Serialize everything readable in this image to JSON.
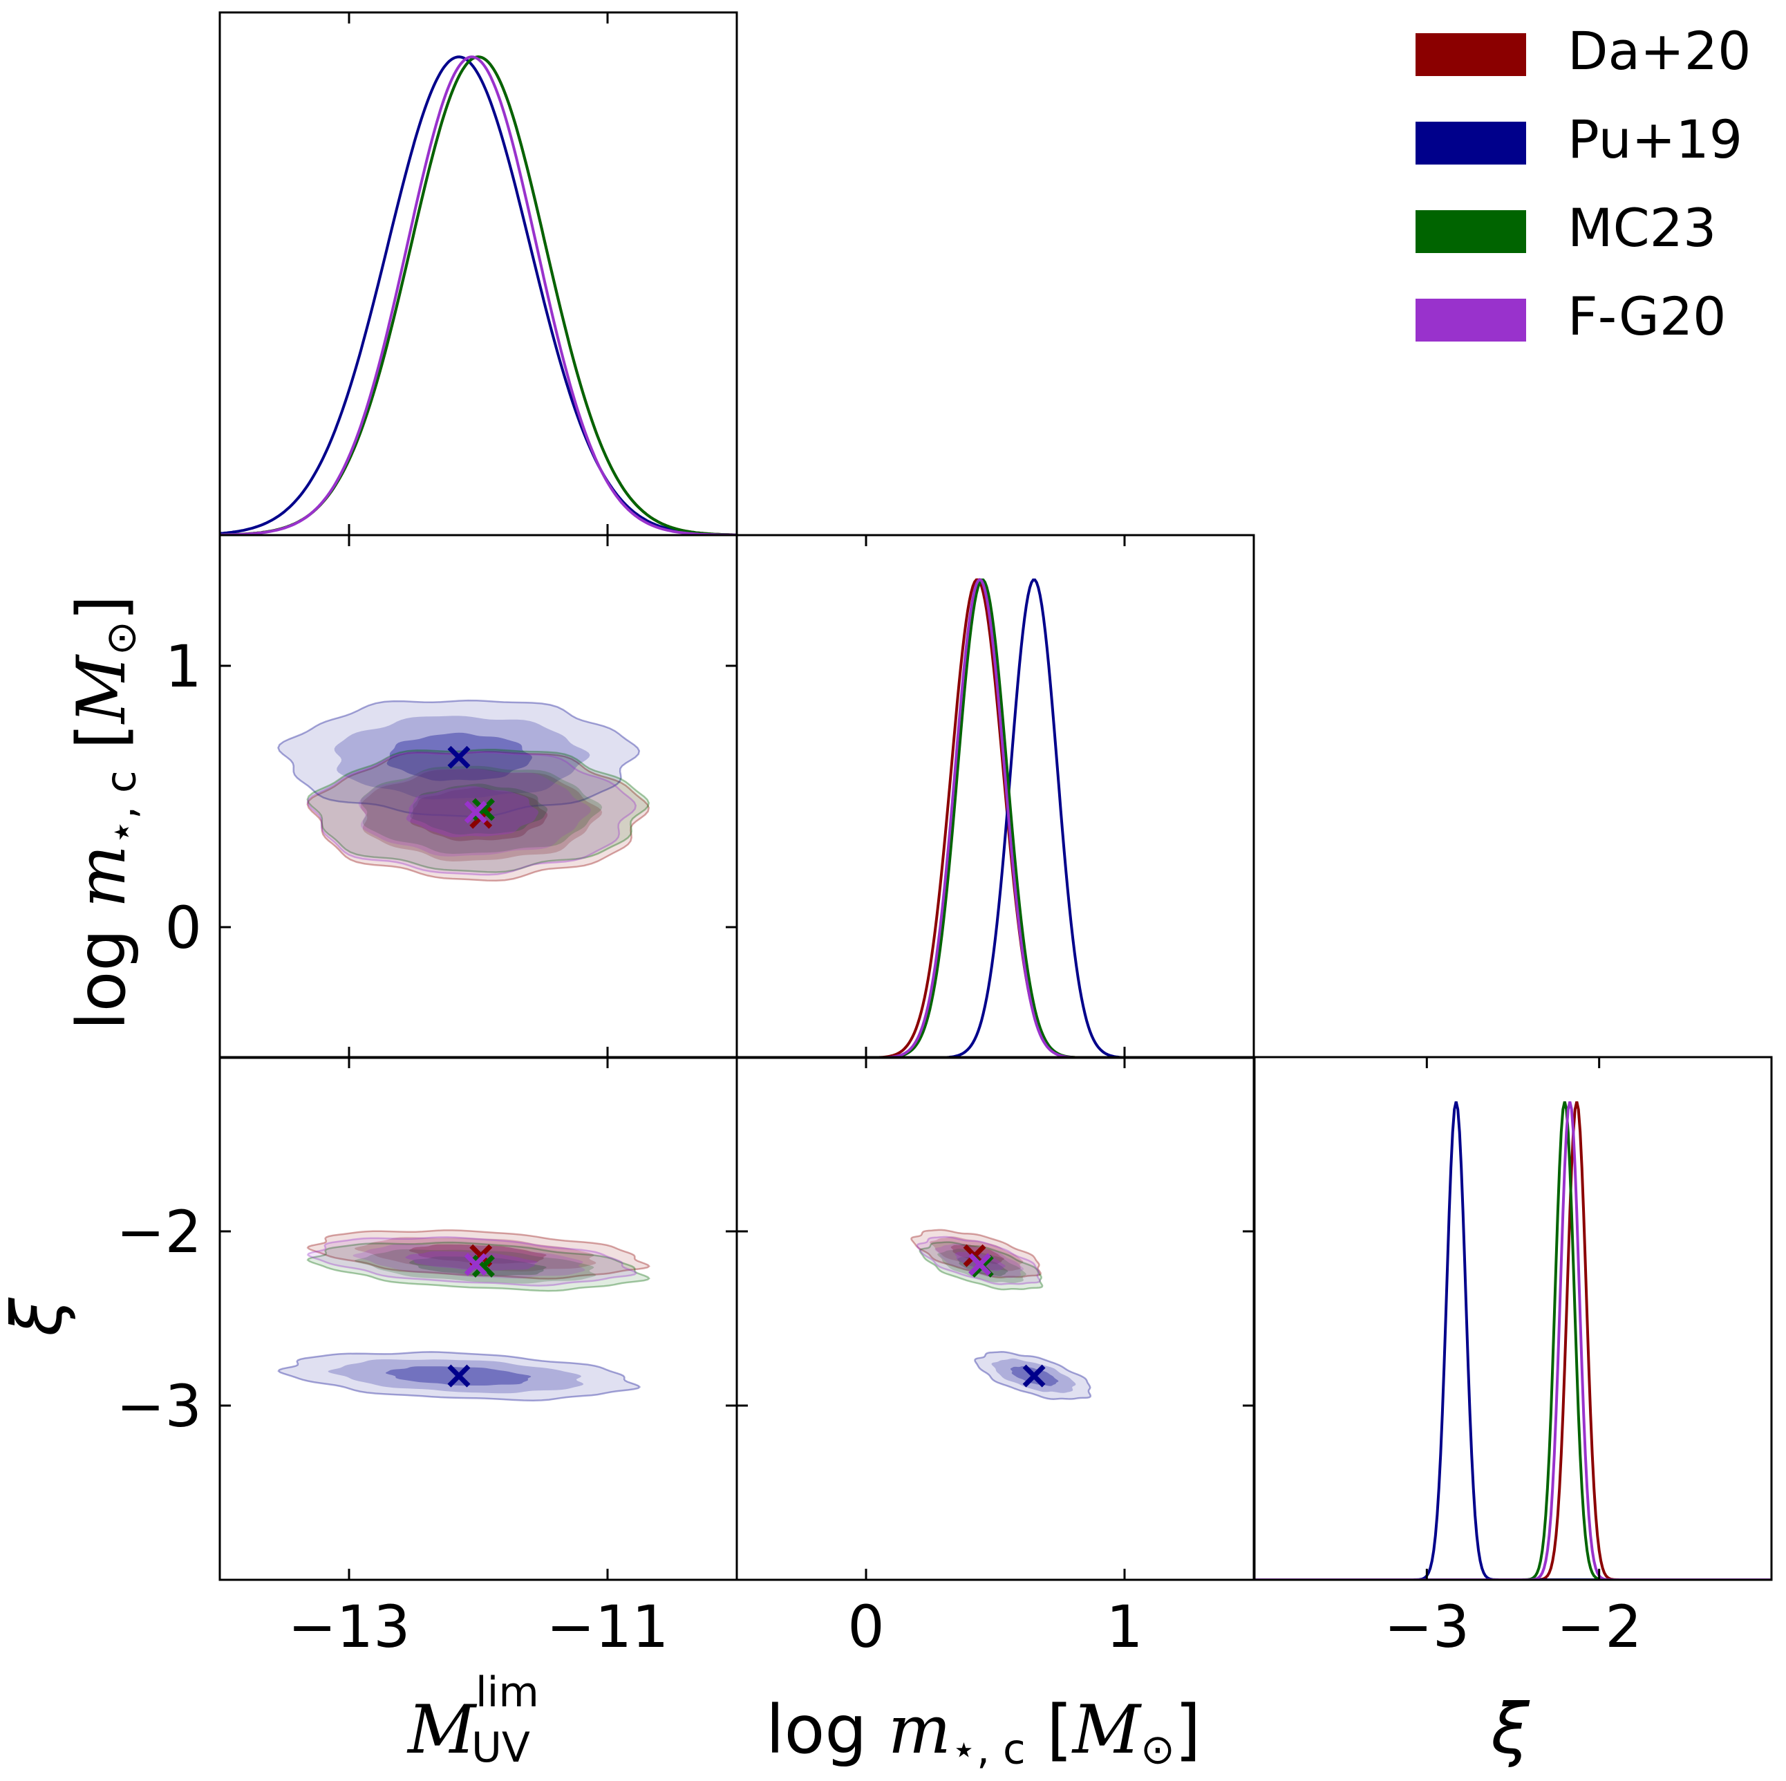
{
  "chart_data": {
    "type": "corner",
    "parameters": [
      {
        "key": "M",
        "label_main": "M",
        "label_sup": "lim",
        "label_sub": "UV",
        "range": [
          -14,
          -10
        ],
        "ticks": [
          -13,
          -11
        ],
        "tick_labels": [
          "−13",
          "−11"
        ]
      },
      {
        "key": "m",
        "label_prefix": "log",
        "label_main": "m",
        "label_sub": "⋆, c",
        "label_unit_open": "[",
        "label_unit_main": "M",
        "label_unit_sub": "⊙",
        "label_unit_close": "]",
        "range": [
          -0.5,
          1.5
        ],
        "ticks": [
          0,
          1
        ],
        "tick_labels": [
          "0",
          "1"
        ]
      },
      {
        "key": "xi",
        "label_main": "ξ",
        "range": [
          -4.0,
          -1.0
        ],
        "ticks": [
          -3,
          -2
        ],
        "tick_labels": [
          "−3",
          "−2"
        ]
      }
    ],
    "legend": {
      "placement": "top-right",
      "entries": [
        "Da+20",
        "Pu+19",
        "MC23",
        "F-G20"
      ]
    },
    "series": [
      {
        "name": "Da+20",
        "color": "#8b0000",
        "mean": {
          "M": -12.0,
          "m": 0.43,
          "xi": -2.13
        },
        "sigma": {
          "M": 0.52,
          "m": 0.1,
          "xi": 0.055
        },
        "rho": {
          "M_m": 0.0,
          "M_xi": -0.35,
          "m_xi": -0.6
        }
      },
      {
        "name": "Pu+19",
        "color": "#00008b",
        "mean": {
          "M": -12.15,
          "m": 0.65,
          "xi": -2.83
        },
        "sigma": {
          "M": 0.55,
          "m": 0.09,
          "xi": 0.055
        },
        "rho": {
          "M_m": 0.0,
          "M_xi": -0.3,
          "m_xi": -0.6
        }
      },
      {
        "name": "MC23",
        "color": "#006400",
        "mean": {
          "M": -12.0,
          "m": 0.45,
          "xi": -2.2
        },
        "sigma": {
          "M": 0.52,
          "m": 0.095,
          "xi": 0.055
        },
        "rho": {
          "M_m": 0.0,
          "M_xi": -0.35,
          "m_xi": -0.6
        }
      },
      {
        "name": "F-G20",
        "color": "#9932cc",
        "mean": {
          "M": -12.05,
          "m": 0.44,
          "xi": -2.17
        },
        "sigma": {
          "M": 0.5,
          "m": 0.095,
          "xi": 0.055
        },
        "rho": {
          "M_m": 0.0,
          "M_xi": -0.35,
          "m_xi": -0.6
        }
      }
    ],
    "markers": [
      {
        "series": "Pu+19",
        "M": -12.15,
        "m": 0.65,
        "xi": -2.83
      },
      {
        "series": "Da+20",
        "M": -11.98,
        "m": 0.42,
        "xi": -2.14
      },
      {
        "series": "MC23",
        "M": -11.96,
        "m": 0.45,
        "xi": -2.2
      },
      {
        "series": "F-G20",
        "M": -12.02,
        "m": 0.44,
        "xi": -2.19
      }
    ]
  }
}
